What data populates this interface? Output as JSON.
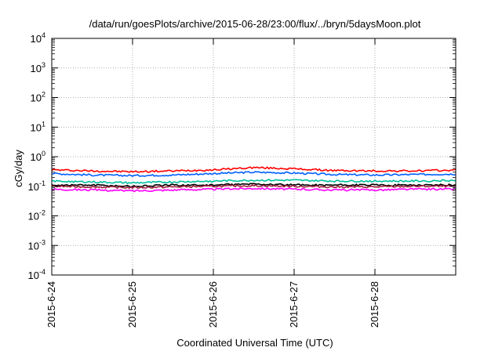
{
  "chart_data": {
    "type": "line",
    "title": "/data/run/goesPlots/archive/2015-06-28/23:00/flux/../bryn/5daysMoon.plot",
    "xlabel": "Coordinated Universal Time (UTC)",
    "ylabel": "cGy/day",
    "yscale": "log",
    "ylim": [
      0.0001,
      10000
    ],
    "xlim": [
      "2015-06-24",
      "2015-06-29"
    ],
    "grid": true,
    "x_ticks": [
      "2015-6-24",
      "2015-6-25",
      "2015-6-26",
      "2015-6-27",
      "2015-6-28"
    ],
    "y_ticks": [
      {
        "base": "10",
        "exp": "-4"
      },
      {
        "base": "10",
        "exp": "-3"
      },
      {
        "base": "10",
        "exp": "-2"
      },
      {
        "base": "10",
        "exp": "-1"
      },
      {
        "base": "10",
        "exp": "0"
      },
      {
        "base": "10",
        "exp": "1"
      },
      {
        "base": "10",
        "exp": "2"
      },
      {
        "base": "10",
        "exp": "3"
      },
      {
        "base": "10",
        "exp": "4"
      }
    ],
    "x": [
      "2015-06-24",
      "2015-06-24 12:00",
      "2015-06-25",
      "2015-06-25 12:00",
      "2015-06-26",
      "2015-06-26 12:00",
      "2015-06-27",
      "2015-06-27 12:00",
      "2015-06-28",
      "2015-06-28 12:00",
      "2015-06-29"
    ],
    "series": [
      {
        "color": "#ff0000",
        "values": [
          0.36,
          0.33,
          0.31,
          0.33,
          0.36,
          0.43,
          0.39,
          0.34,
          0.33,
          0.33,
          0.35
        ]
      },
      {
        "color": "#0060ff",
        "values": [
          0.27,
          0.24,
          0.23,
          0.24,
          0.27,
          0.3,
          0.28,
          0.25,
          0.24,
          0.25,
          0.26
        ]
      },
      {
        "color": "#00c0a0",
        "values": [
          0.15,
          0.14,
          0.13,
          0.14,
          0.15,
          0.16,
          0.16,
          0.15,
          0.15,
          0.15,
          0.16
        ]
      },
      {
        "color": "#000000",
        "values": [
          0.11,
          0.11,
          0.1,
          0.11,
          0.11,
          0.12,
          0.11,
          0.11,
          0.11,
          0.11,
          0.11
        ]
      },
      {
        "color": "#a02040",
        "values": [
          0.1,
          0.095,
          0.09,
          0.095,
          0.1,
          0.105,
          0.1,
          0.095,
          0.095,
          0.1,
          0.1
        ]
      },
      {
        "color": "#ff00ff",
        "values": [
          0.08,
          0.075,
          0.07,
          0.075,
          0.08,
          0.085,
          0.08,
          0.075,
          0.075,
          0.08,
          0.08
        ]
      }
    ]
  }
}
